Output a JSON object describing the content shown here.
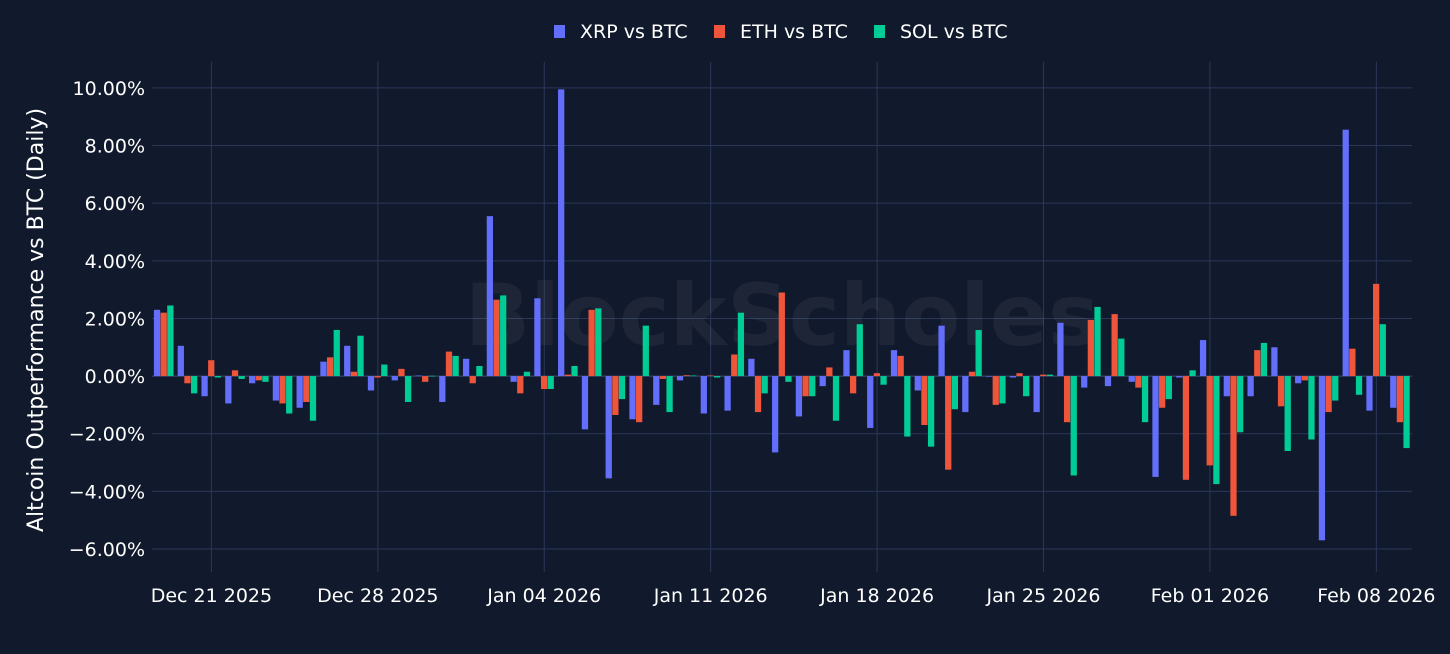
{
  "chart_data": {
    "type": "bar",
    "title": "",
    "xlabel": "",
    "ylabel": "Altcoin Outperformance vs BTC (Daily)",
    "ylim": [
      -6.8,
      10.9
    ],
    "y_ticks": [
      -6,
      -4,
      -2,
      0,
      2,
      4,
      6,
      8,
      10
    ],
    "y_tick_labels": [
      "−6.00%",
      "−4.00%",
      "−2.00%",
      "0.00%",
      "2.00%",
      "4.00%",
      "6.00%",
      "8.00%",
      "10.00%"
    ],
    "x_tick_labels": [
      "Dec 21 2025",
      "Dec 28 2025",
      "Jan 04 2026",
      "Jan 11 2026",
      "Jan 18 2026",
      "Jan 25 2026",
      "Feb 01 2026",
      "Feb 08 2026"
    ],
    "x_tick_index": [
      2,
      9,
      16,
      23,
      30,
      37,
      44,
      51
    ],
    "legend_position": "top-center",
    "watermark": "BlockScholes",
    "categories": [
      "Dec 19 2025",
      "Dec 20 2025",
      "Dec 21 2025",
      "Dec 22 2025",
      "Dec 23 2025",
      "Dec 24 2025",
      "Dec 25 2025",
      "Dec 26 2025",
      "Dec 27 2025",
      "Dec 28 2025",
      "Dec 29 2025",
      "Dec 30 2025",
      "Dec 31 2025",
      "Jan 01 2026",
      "Jan 02 2026",
      "Jan 03 2026",
      "Jan 04 2026",
      "Jan 05 2026",
      "Jan 06 2026",
      "Jan 07 2026",
      "Jan 08 2026",
      "Jan 09 2026",
      "Jan 10 2026",
      "Jan 11 2026",
      "Jan 12 2026",
      "Jan 13 2026",
      "Jan 14 2026",
      "Jan 15 2026",
      "Jan 16 2026",
      "Jan 17 2026",
      "Jan 18 2026",
      "Jan 19 2026",
      "Jan 20 2026",
      "Jan 21 2026",
      "Jan 22 2026",
      "Jan 23 2026",
      "Jan 24 2026",
      "Jan 25 2026",
      "Jan 26 2026",
      "Jan 27 2026",
      "Jan 28 2026",
      "Jan 29 2026",
      "Jan 30 2026",
      "Jan 31 2026",
      "Feb 01 2026",
      "Feb 02 2026",
      "Feb 03 2026",
      "Feb 04 2026",
      "Feb 05 2026",
      "Feb 06 2026",
      "Feb 07 2026",
      "Feb 08 2026",
      "Feb 09 2026"
    ],
    "series": [
      {
        "name": "XRP vs BTC",
        "color": "#636efa",
        "values": [
          2.3,
          1.05,
          -0.7,
          -0.95,
          -0.25,
          -0.85,
          -1.1,
          0.5,
          1.05,
          -0.5,
          -0.15,
          0.02,
          -0.9,
          0.6,
          5.55,
          -0.2,
          2.7,
          9.95,
          -1.85,
          -3.55,
          -1.5,
          -1.0,
          -0.15,
          -1.3,
          -1.2,
          0.6,
          -2.65,
          -1.4,
          -0.35,
          0.9,
          -1.8,
          0.9,
          -0.5,
          1.75,
          -1.25,
          0.0,
          -0.05,
          -1.25,
          1.85,
          -0.4,
          -0.35,
          -0.2,
          -3.5,
          -0.05,
          1.25,
          -0.7,
          -0.7,
          1.0,
          -0.25,
          -5.7,
          8.55,
          -1.2,
          -1.1
        ]
      },
      {
        "name": "ETH vs BTC",
        "color": "#ef553b",
        "values": [
          2.2,
          -0.25,
          0.55,
          0.2,
          -0.15,
          -0.95,
          -0.9,
          0.65,
          0.15,
          -0.05,
          0.25,
          -0.2,
          0.85,
          -0.25,
          2.65,
          -0.6,
          -0.45,
          0.05,
          2.3,
          -1.35,
          -1.6,
          -0.1,
          0.03,
          0.02,
          0.75,
          -1.25,
          2.9,
          -0.7,
          0.3,
          -0.6,
          0.1,
          0.7,
          -1.7,
          -3.25,
          0.15,
          -1.0,
          0.1,
          0.05,
          -1.6,
          1.95,
          2.15,
          -0.4,
          -1.1,
          -3.6,
          -3.1,
          -4.85,
          0.9,
          -1.05,
          -0.15,
          -1.25,
          0.95,
          3.2,
          -1.6
        ]
      },
      {
        "name": "SOL vs BTC",
        "color": "#00cc96",
        "values": [
          2.45,
          -0.6,
          -0.05,
          -0.1,
          -0.2,
          -1.3,
          -1.55,
          1.6,
          1.4,
          0.4,
          -0.9,
          0.01,
          0.7,
          0.35,
          2.8,
          0.15,
          -0.45,
          0.35,
          2.35,
          -0.8,
          1.75,
          -1.25,
          0.02,
          -0.05,
          2.2,
          -0.6,
          -0.2,
          -0.7,
          -1.55,
          1.8,
          -0.3,
          -2.1,
          -2.45,
          -1.15,
          1.6,
          -0.95,
          -0.7,
          0.05,
          -3.45,
          2.4,
          1.3,
          -1.6,
          -0.8,
          0.2,
          -3.75,
          -1.95,
          1.15,
          -2.6,
          -2.2,
          -0.85,
          -0.65,
          1.8,
          -2.5
        ]
      }
    ]
  }
}
